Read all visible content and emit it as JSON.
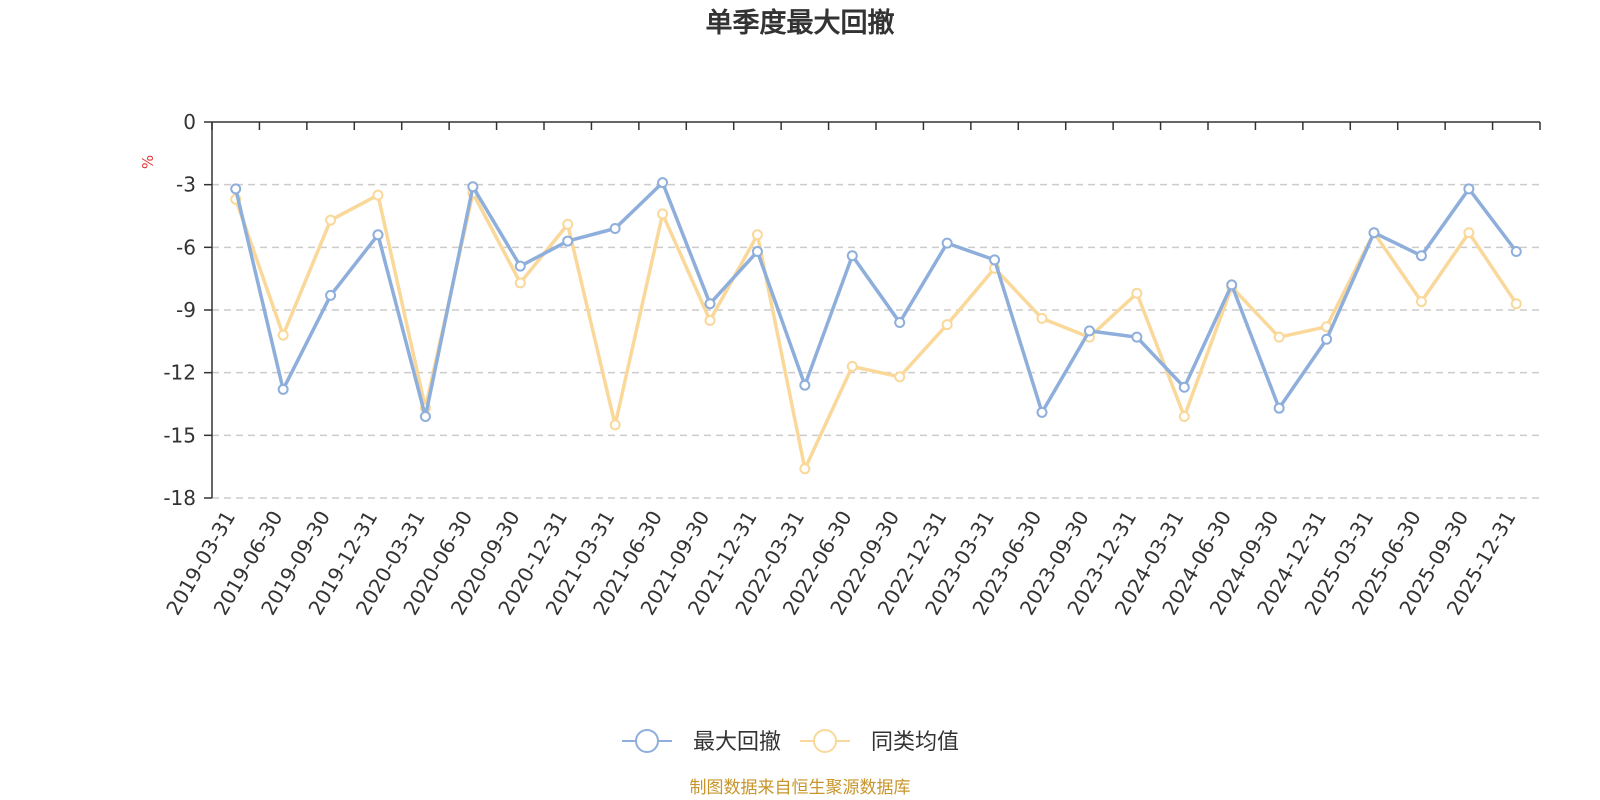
{
  "chart_data": {
    "type": "line",
    "title": "单季度最大回撤",
    "ylabel": "%",
    "ylim": [
      -18,
      0
    ],
    "yticks": [
      0,
      -3,
      -6,
      -9,
      -12,
      -15,
      -18
    ],
    "grid": true,
    "legend_position": "bottom",
    "categories": [
      "2019-03-31",
      "2019-06-30",
      "2019-09-30",
      "2019-12-31",
      "2020-03-31",
      "2020-06-30",
      "2020-09-30",
      "2020-12-31",
      "2021-03-31",
      "2021-06-30",
      "2021-09-30",
      "2021-12-31",
      "2022-03-31",
      "2022-06-30",
      "2022-09-30",
      "2022-12-31",
      "2023-03-31",
      "2023-06-30",
      "2023-09-30",
      "2023-12-31",
      "2024-03-31",
      "2024-06-30",
      "2024-09-30",
      "2024-12-31",
      "2025-03-31",
      "2025-06-30",
      "2025-09-30",
      "2025-12-31"
    ],
    "series": [
      {
        "name": "最大回撤",
        "color": "#8eaedb",
        "values": [
          -3.2,
          -12.8,
          -8.3,
          -5.4,
          -14.1,
          -3.1,
          -6.9,
          -5.7,
          -5.1,
          -2.9,
          -8.7,
          -6.2,
          -12.6,
          -6.4,
          -9.6,
          -5.8,
          -6.6,
          -13.9,
          -10.0,
          -10.3,
          -12.7,
          -7.8,
          -13.7,
          -10.4,
          -5.3,
          -6.4,
          -3.2,
          -6.2
        ]
      },
      {
        "name": "同类均值",
        "color": "#fad89a",
        "values": [
          -3.7,
          -10.2,
          -4.7,
          -3.5,
          -13.7,
          -3.4,
          -7.7,
          -4.9,
          -14.5,
          -4.4,
          -9.5,
          -5.4,
          -16.6,
          -11.7,
          -12.2,
          -9.7,
          -7.0,
          -9.4,
          -10.3,
          -8.2,
          -14.1,
          -7.9,
          -10.3,
          -9.8,
          -5.3,
          -8.6,
          -5.3,
          -8.7
        ]
      }
    ]
  },
  "footer": {
    "source_text": "制图数据来自恒生聚源数据库"
  }
}
